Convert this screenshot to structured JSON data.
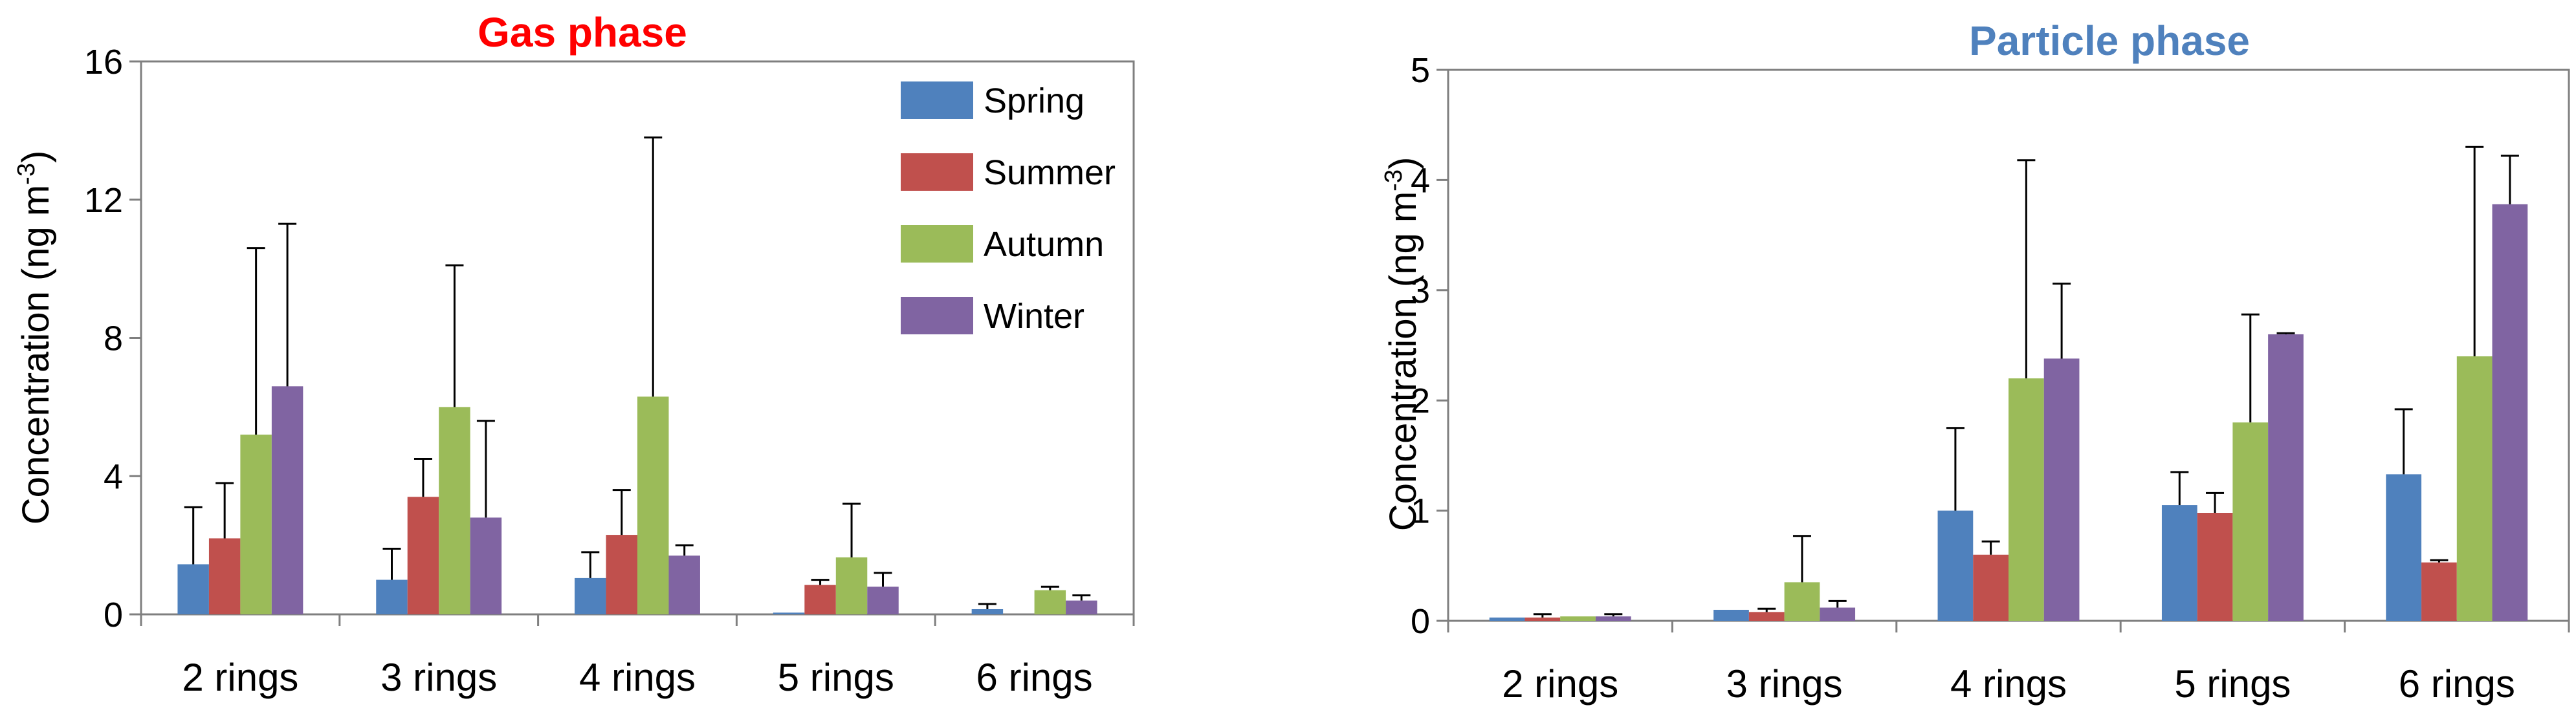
{
  "chart_data": [
    {
      "type": "bar",
      "title": "Gas phase",
      "title_color": "#ff0000",
      "ylabel": "Concentration (ng m-3)",
      "xlabel": "",
      "categories": [
        "2 rings",
        "3 rings",
        "4 rings",
        "5 rings",
        "6 rings"
      ],
      "ylim": [
        0,
        16
      ],
      "yticks": [
        0,
        4,
        8,
        12,
        16
      ],
      "grid": false,
      "legend": "top-right",
      "series": [
        {
          "name": "Spring",
          "color": "#4f81bd",
          "values": [
            1.45,
            1.0,
            1.05,
            0.05,
            0.15
          ],
          "error_upper": [
            3.1,
            1.9,
            1.8,
            0.05,
            0.3
          ]
        },
        {
          "name": "Summer",
          "color": "#c0504d",
          "values": [
            2.2,
            3.4,
            2.3,
            0.85,
            0.0
          ],
          "error_upper": [
            3.8,
            4.5,
            3.6,
            1.0,
            0.0
          ]
        },
        {
          "name": "Autumn",
          "color": "#9bbb59",
          "values": [
            5.2,
            6.0,
            6.3,
            1.65,
            0.7
          ],
          "error_upper": [
            10.6,
            10.1,
            13.8,
            3.2,
            0.8
          ]
        },
        {
          "name": "Winter",
          "color": "#8064a2",
          "values": [
            6.6,
            2.8,
            1.7,
            0.8,
            0.4
          ],
          "error_upper": [
            11.3,
            5.6,
            2.0,
            1.2,
            0.55
          ]
        }
      ]
    },
    {
      "type": "bar",
      "title": "Particle phase",
      "title_color": "#4f81bd",
      "ylabel": "Concentration (ng m-3)",
      "xlabel": "",
      "categories": [
        "2 rings",
        "3 rings",
        "4 rings",
        "5 rings",
        "6 rings"
      ],
      "ylim": [
        0,
        5
      ],
      "yticks": [
        0,
        1,
        2,
        3,
        4,
        5
      ],
      "grid": false,
      "legend": "none",
      "series": [
        {
          "name": "Spring",
          "color": "#4f81bd",
          "values": [
            0.03,
            0.1,
            1.0,
            1.05,
            1.33
          ],
          "error_upper": [
            0.03,
            0.1,
            1.75,
            1.35,
            1.92
          ]
        },
        {
          "name": "Summer",
          "color": "#c0504d",
          "values": [
            0.03,
            0.08,
            0.6,
            0.98,
            0.53
          ],
          "error_upper": [
            0.06,
            0.11,
            0.72,
            1.16,
            0.55
          ]
        },
        {
          "name": "Autumn",
          "color": "#9bbb59",
          "values": [
            0.04,
            0.35,
            2.2,
            1.8,
            2.4
          ],
          "error_upper": [
            0.04,
            0.77,
            4.18,
            2.78,
            4.3
          ]
        },
        {
          "name": "Winter",
          "color": "#8064a2",
          "values": [
            0.04,
            0.12,
            2.38,
            2.6,
            3.78
          ],
          "error_upper": [
            0.06,
            0.18,
            3.06,
            2.61,
            4.22
          ]
        }
      ]
    }
  ]
}
